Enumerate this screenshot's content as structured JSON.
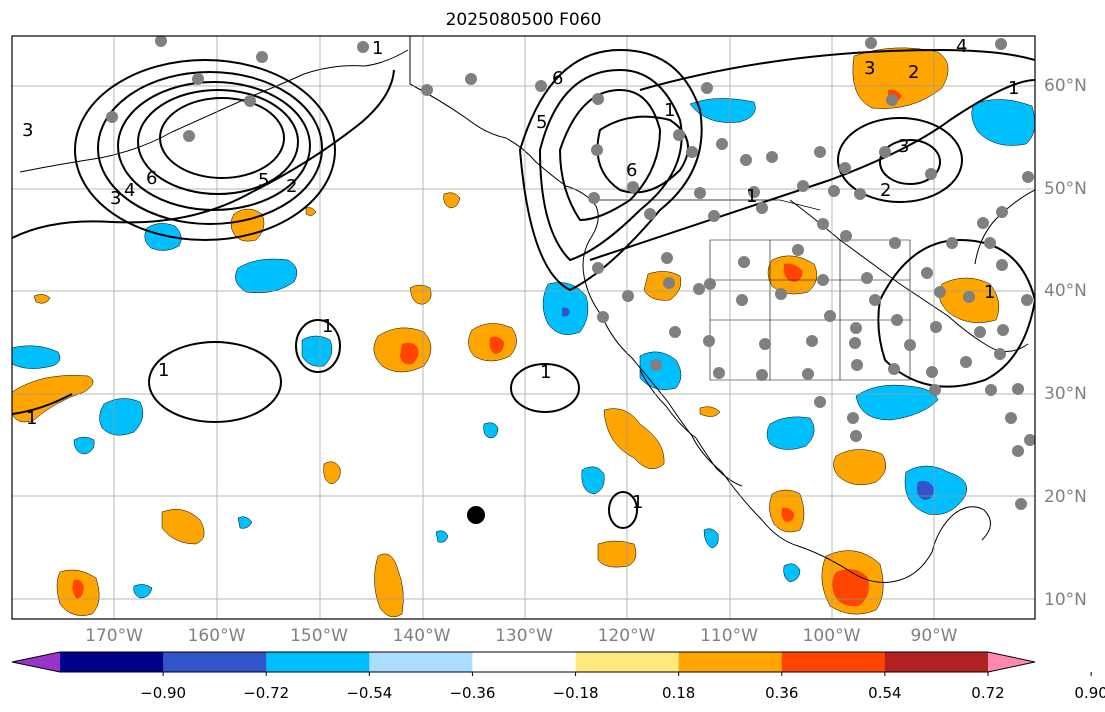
{
  "title": "2025080500 F060",
  "lon_labels": [
    "170°W",
    "160°W",
    "150°W",
    "140°W",
    "130°W",
    "120°W",
    "110°W",
    "100°W",
    "90°W"
  ],
  "lon_values": [
    -170,
    -160,
    -150,
    -140,
    -130,
    -120,
    -110,
    -100,
    -90
  ],
  "lat_labels": [
    "60°N",
    "50°N",
    "40°N",
    "30°N",
    "20°N",
    "10°N"
  ],
  "lat_values": [
    60,
    50,
    40,
    30,
    20,
    10
  ],
  "colorbar": {
    "tick_labels": [
      "−0.90",
      "−0.72",
      "−0.54",
      "−0.36",
      "−0.18",
      "0.18",
      "0.36",
      "0.54",
      "0.72",
      "0.90"
    ],
    "tick_values": [
      -0.9,
      -0.72,
      -0.54,
      -0.36,
      -0.18,
      0.18,
      0.36,
      0.54,
      0.72,
      0.9
    ],
    "colors": [
      "#9a33cc",
      "#00008b",
      "#3355cc",
      "#00bfff",
      "#aadeff",
      "#ffffff",
      "#ffe97f",
      "#ffa500",
      "#ff4500",
      "#b22222",
      "#ff88b0"
    ]
  },
  "contour_labels": [
    "1",
    "2",
    "3",
    "4",
    "5",
    "6"
  ],
  "grid": true
}
